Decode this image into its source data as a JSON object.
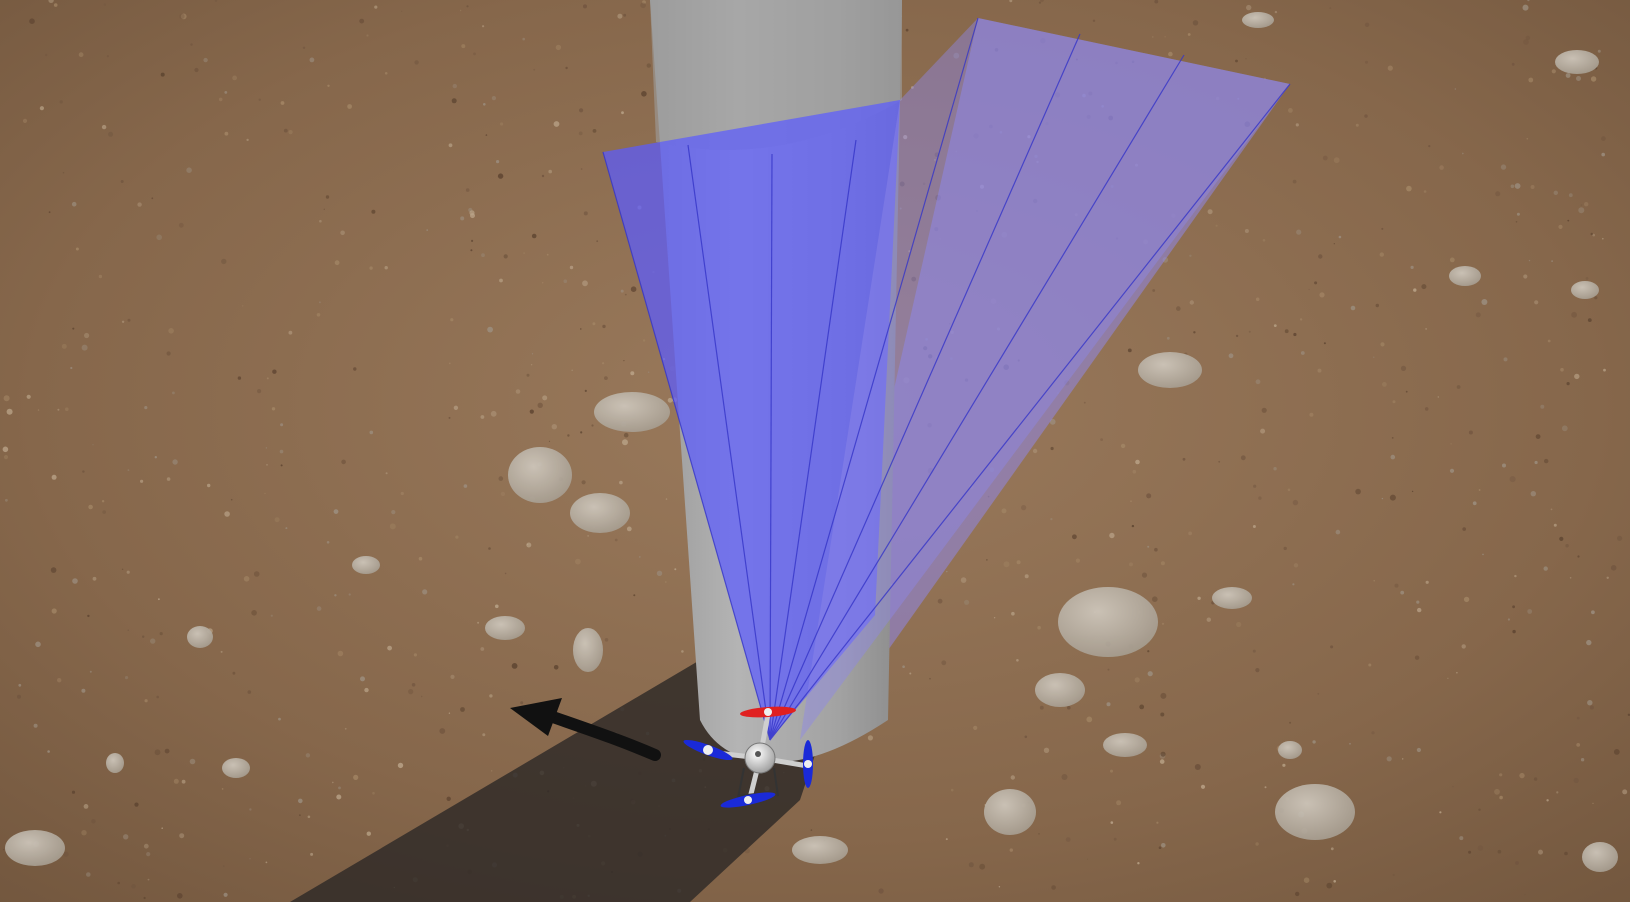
{
  "scene": {
    "colors": {
      "ground": "#8a6a4e",
      "ground_dark": "#6e5238",
      "ground_light": "#a6876a",
      "pillar": "#a8a8a8",
      "pillar_light": "#c4c4c4",
      "sensor_beam": "#5b5bff",
      "sensor_beam_faint": "#8f87e8",
      "shadow": "#2e2a27",
      "arrow": "#111111",
      "rotor_front": "#e02020",
      "rotor": "#1a2ad8",
      "drone_body": "#d4d4d4"
    },
    "icons": {
      "drone": "quadrotor-icon",
      "heading": "heading-arrow-icon"
    }
  }
}
